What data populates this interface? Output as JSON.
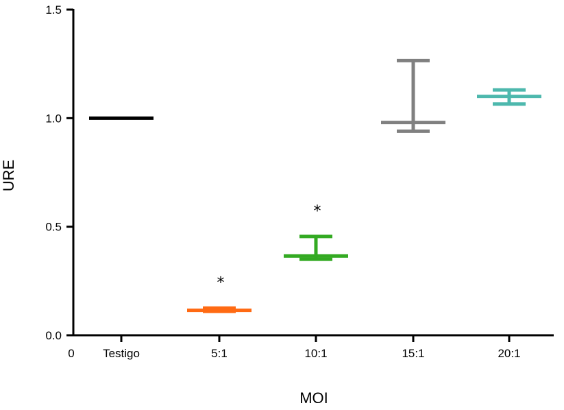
{
  "chart_data": {
    "type": "scatter",
    "xlabel": "MOI",
    "ylabel": "URE",
    "ylim": [
      0,
      1.5
    ],
    "y_ticks": [
      "0.0",
      "0.5",
      "1.0",
      "1.5"
    ],
    "x_origin_label": "0",
    "categories": [
      "Testigo",
      "5:1",
      "10:1",
      "15:1",
      "20:1"
    ],
    "colors": [
      "#000000",
      "#ff6a13",
      "#33aa22",
      "#808080",
      "#4db8ad"
    ],
    "values": [
      1.0,
      0.115,
      0.365,
      0.98,
      1.1
    ],
    "error_upper": [
      1.0,
      0.125,
      0.455,
      1.265,
      1.13
    ],
    "error_lower": [
      1.0,
      0.11,
      0.35,
      0.94,
      1.065
    ],
    "annotations": [
      "",
      "*",
      "*",
      "",
      ""
    ],
    "grid": false,
    "legend": "none"
  }
}
